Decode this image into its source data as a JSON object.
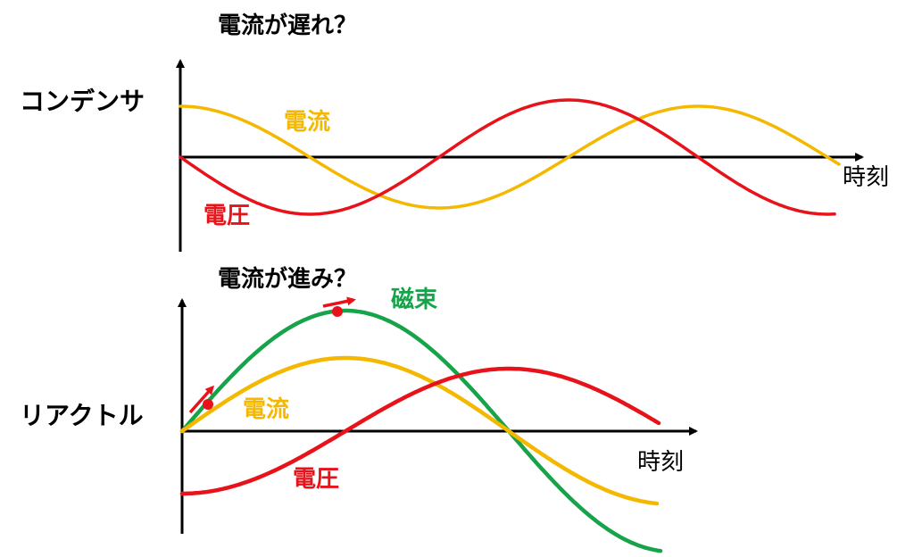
{
  "top_panel": {
    "question": "電流が遅れ？",
    "side_label": "コンデンサ",
    "current_label": "電流",
    "voltage_label": "電圧",
    "time_axis_label": "時刻"
  },
  "bottom_panel": {
    "question": "電流が進み？",
    "side_label": "リアクトル",
    "flux_label": "磁束",
    "current_label": "電流",
    "voltage_label": "電圧",
    "time_axis_label": "時刻"
  },
  "colors": {
    "current": "#f5b800",
    "voltage": "#e8121a",
    "flux": "#16a34a",
    "axis": "#000000",
    "marker": "#e8121a"
  }
}
